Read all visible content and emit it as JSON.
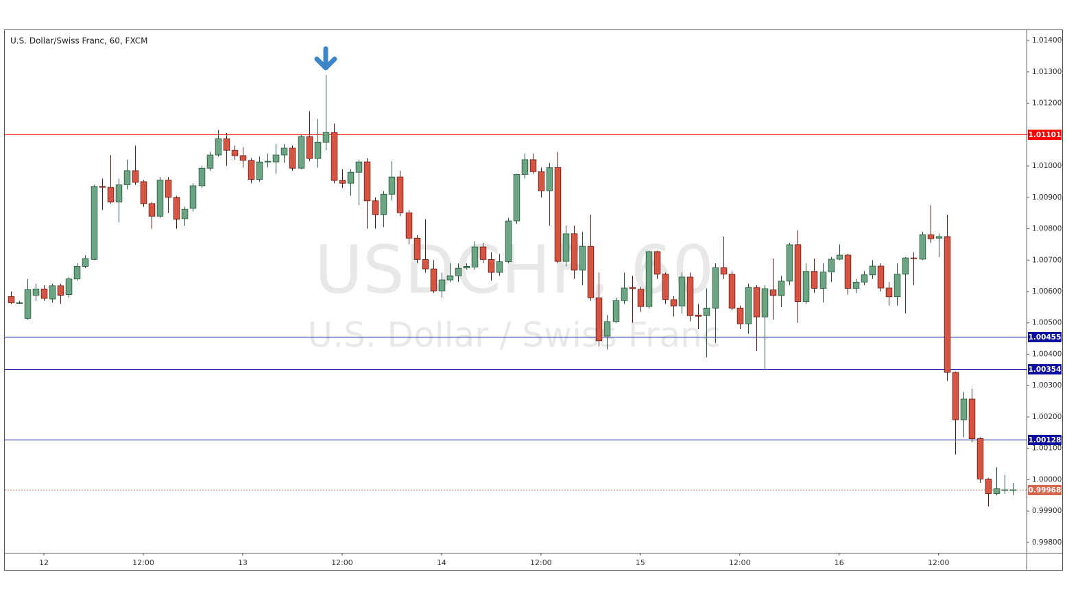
{
  "chart_data": {
    "type": "candlestick",
    "title": "U.S. Dollar/Swiss Franc, 60, FXCM",
    "watermark": [
      "USDCHF, 60",
      "U.S. Dollar / Swiss Franc"
    ],
    "x": [
      -4,
      -3,
      -2,
      -1,
      0,
      1,
      2,
      3,
      4,
      5,
      6,
      7,
      8,
      9,
      10,
      11,
      12,
      13,
      14,
      15,
      16,
      17,
      18,
      19,
      20,
      21,
      22,
      23,
      24,
      25,
      26,
      27,
      28,
      29,
      30,
      31,
      32,
      33,
      34,
      35,
      36,
      37,
      38,
      39,
      40,
      41,
      42,
      43,
      44,
      45,
      46,
      47,
      48,
      49,
      50,
      51,
      52,
      53,
      54,
      55,
      56,
      57,
      58,
      59,
      60,
      61,
      62,
      63,
      64,
      65,
      66,
      67,
      68,
      69,
      70,
      71,
      72,
      73,
      74,
      75,
      76,
      77,
      78,
      79,
      80,
      81,
      82,
      83,
      84,
      85,
      86,
      87,
      88,
      89,
      90,
      91,
      92,
      93,
      94,
      95,
      96,
      97,
      98,
      99,
      100,
      101,
      102,
      103,
      104,
      105,
      106,
      107,
      108,
      109,
      110,
      111,
      112,
      113,
      114,
      115,
      116,
      117
    ],
    "open": [
      1.00584,
      1.00564,
      1.00514,
      1.00588,
      1.00608,
      1.00576,
      1.00618,
      1.0059,
      1.0064,
      1.0068,
      1.00702,
      1.00935,
      1.00932,
      1.00885,
      1.0094,
      1.00985,
      1.0095,
      1.0088,
      1.0084,
      1.00955,
      1.009,
      1.00832,
      1.00865,
      1.00937,
      1.00993,
      1.01035,
      1.01087,
      1.0105,
      1.01033,
      1.01018,
      1.00957,
      1.01013,
      1.01013,
      1.01035,
      1.01057,
      1.00993,
      1.01094,
      1.01024,
      1.01076,
      1.01107,
      1.00954,
      1.00945,
      1.0098,
      1.01013,
      1.00889,
      1.00845,
      1.0091,
      1.00965,
      1.00851,
      1.0077,
      1.00702,
      1.00672,
      1.00602,
      1.00637,
      1.0065,
      1.00675,
      1.00678,
      1.00742,
      1.00702,
      1.00661,
      1.00695,
      1.00825,
      1.00973,
      1.0102,
      1.00982,
      1.00921,
      1.00995,
      1.00696,
      1.00784,
      1.00668,
      1.00744,
      1.0058,
      1.00458,
      1.00504,
      1.00571,
      1.00613,
      1.00607,
      1.00552,
      1.00727,
      1.00655,
      1.00574,
      1.00554,
      1.00646,
      1.00525,
      1.00523,
      1.00547,
      1.00676,
      1.00655,
      1.00547,
      1.00497,
      1.00613,
      1.00519,
      1.00605,
      1.00587,
      1.00633,
      1.00749,
      1.00568,
      1.00664,
      1.0061,
      1.00662,
      1.00703,
      1.00716,
      1.0061,
      1.0063,
      1.00653,
      1.00681,
      1.00611,
      1.00583,
      1.00655,
      1.00707,
      1.00703,
      1.00781,
      1.0077,
      1.00775,
      1.00342,
      1.00191,
      1.00257,
      1.00131,
      1.00002,
      0.99956,
      0.99968,
      0.99968
    ],
    "high": [
      1.006,
      1.0057,
      1.0064,
      1.00625,
      1.0062,
      1.00625,
      1.00625,
      1.00645,
      1.0069,
      1.00715,
      1.0094,
      1.0096,
      1.01035,
      1.0096,
      1.0102,
      1.01065,
      1.00955,
      1.00885,
      1.00965,
      1.00965,
      1.00905,
      1.0087,
      1.00945,
      1.01,
      1.01045,
      1.01115,
      1.01105,
      1.01065,
      1.0106,
      1.01025,
      1.0103,
      1.0104,
      1.0107,
      1.0107,
      1.01065,
      1.011,
      1.01175,
      1.0115,
      1.0129,
      1.01135,
      1.0099,
      1.0099,
      1.0102,
      1.01025,
      1.009,
      1.0092,
      1.01015,
      1.00985,
      1.0086,
      1.0078,
      1.0083,
      1.007,
      1.0066,
      1.0069,
      1.0069,
      1.0069,
      1.0076,
      1.00755,
      1.00725,
      1.0072,
      1.00835,
      1.00975,
      1.0104,
      1.0104,
      1.00995,
      1.0101,
      1.01045,
      1.0081,
      1.0081,
      1.0079,
      1.00845,
      1.0066,
      1.00525,
      1.0058,
      1.0066,
      1.0065,
      1.00615,
      1.0073,
      1.0073,
      1.0066,
      1.00585,
      1.0066,
      1.0066,
      1.0056,
      1.0061,
      1.0069,
      1.00775,
      1.00665,
      1.00555,
      1.00625,
      1.0062,
      1.0062,
      1.00705,
      1.0065,
      1.00755,
      1.00795,
      1.0069,
      1.00705,
      1.0069,
      1.0071,
      1.0075,
      1.0072,
      1.0064,
      1.00665,
      1.007,
      1.0069,
      1.0063,
      1.0069,
      1.0071,
      1.00725,
      1.0079,
      1.00875,
      1.00785,
      1.00845,
      1.00345,
      1.0028,
      1.0029,
      1.00135,
      1.00005,
      1.0004,
      1.00015,
      0.9999
    ],
    "low": [
      1.0056,
      1.0056,
      1.0051,
      1.0057,
      1.0057,
      1.00565,
      1.0056,
      1.0058,
      1.00635,
      1.00675,
      1.007,
      1.0086,
      1.0088,
      1.0082,
      1.00925,
      1.0094,
      1.0087,
      1.008,
      1.00835,
      1.0085,
      1.008,
      1.0081,
      1.00855,
      1.0093,
      1.00985,
      1.0103,
      1.01,
      1.0102,
      1.00995,
      1.00945,
      1.0095,
      1.00995,
      1.00975,
      1.0101,
      1.00985,
      1.0099,
      1.01015,
      1.00995,
      1.0105,
      1.00945,
      1.0093,
      1.00905,
      1.00875,
      1.008,
      1.008,
      1.00805,
      1.0089,
      1.0084,
      1.0075,
      1.0069,
      1.0066,
      1.00595,
      1.0058,
      1.0063,
      1.0063,
      1.0067,
      1.0067,
      1.0069,
      1.00635,
      1.0065,
      1.0069,
      1.00815,
      1.0096,
      1.00975,
      1.009,
      1.0081,
      1.0069,
      1.0068,
      1.0064,
      1.0062,
      1.0057,
      1.00425,
      1.00415,
      1.005,
      1.0056,
      1.005,
      1.00535,
      1.00545,
      1.0064,
      1.0056,
      1.0052,
      1.0053,
      1.00505,
      1.0048,
      1.0039,
      1.00435,
      1.0064,
      1.0054,
      1.0048,
      1.00465,
      1.0041,
      1.0035,
      1.0051,
      1.0055,
      1.0062,
      1.005,
      1.0056,
      1.00595,
      1.00565,
      1.0063,
      1.007,
      1.0059,
      1.00595,
      1.0062,
      1.0064,
      1.006,
      1.00555,
      1.00555,
      1.0053,
      1.0062,
      1.007,
      1.00755,
      1.0071,
      1.00315,
      1.0008,
      1.00135,
      1.0012,
      0.9999,
      0.99915,
      0.9995,
      0.99955,
      0.9995
    ],
    "close": [
      1.00564,
      1.00564,
      1.00606,
      1.00608,
      1.00578,
      1.00618,
      1.00588,
      1.0064,
      1.0068,
      1.00705,
      1.00935,
      1.00932,
      1.00885,
      1.0094,
      1.00985,
      1.00948,
      1.0088,
      1.0084,
      1.00955,
      1.009,
      1.0083,
      1.00862,
      1.00937,
      1.00993,
      1.01035,
      1.01087,
      1.0105,
      1.01033,
      1.01018,
      1.00957,
      1.01013,
      1.01015,
      1.01035,
      1.01057,
      1.00993,
      1.01094,
      1.01024,
      1.01076,
      1.01107,
      1.00954,
      1.00945,
      1.0098,
      1.01013,
      1.00889,
      1.00845,
      1.0091,
      1.00965,
      1.00851,
      1.0077,
      1.00702,
      1.00672,
      1.00602,
      1.00637,
      1.0065,
      1.00674,
      1.0068,
      1.00742,
      1.00702,
      1.00661,
      1.00695,
      1.00825,
      1.00973,
      1.0102,
      1.00982,
      1.00921,
      1.00995,
      1.00696,
      1.00784,
      1.00668,
      1.00744,
      1.0058,
      1.00443,
      1.00504,
      1.00571,
      1.00611,
      1.00609,
      1.00552,
      1.00727,
      1.00655,
      1.00574,
      1.00554,
      1.00646,
      1.00523,
      1.00521,
      1.00547,
      1.00676,
      1.00655,
      1.00547,
      1.00497,
      1.00613,
      1.00519,
      1.00609,
      1.00587,
      1.00633,
      1.00749,
      1.00568,
      1.00664,
      1.0061,
      1.00662,
      1.00703,
      1.00716,
      1.0061,
      1.0063,
      1.00653,
      1.00681,
      1.00611,
      1.00583,
      1.00655,
      1.00707,
      1.00705,
      1.00781,
      1.00768,
      1.00775,
      1.00342,
      1.00191,
      1.00257,
      1.00131,
      1.00002,
      0.99956,
      0.99971,
      0.99968,
      0.99968
    ],
    "up_color": "#6ba583",
    "up_border": "#225437",
    "down_color": "#d75442",
    "down_border": "#5b1a13",
    "xlim": [
      -4.72,
      118.62
    ],
    "xticks": [
      {
        "value": 0,
        "label": "12"
      },
      {
        "value": 12,
        "label": "12:00"
      },
      {
        "value": 24,
        "label": "13"
      },
      {
        "value": 36,
        "label": "12:00"
      },
      {
        "value": 48,
        "label": "14"
      },
      {
        "value": 60,
        "label": "12:00"
      },
      {
        "value": 72,
        "label": "15"
      },
      {
        "value": 84,
        "label": "12:00"
      },
      {
        "value": 96,
        "label": "16"
      },
      {
        "value": 108,
        "label": "12:00"
      }
    ],
    "ylim": [
      0.99767,
      1.01433
    ],
    "yticks": [
      {
        "value": 0.998,
        "label": "0.99800"
      },
      {
        "value": 0.999,
        "label": "0.99900"
      },
      {
        "value": 1.0,
        "label": "1.00000"
      },
      {
        "value": 1.001,
        "label": "1.00100"
      },
      {
        "value": 1.002,
        "label": "1.00200"
      },
      {
        "value": 1.003,
        "label": "1.00300"
      },
      {
        "value": 1.004,
        "label": "1.00400"
      },
      {
        "value": 1.005,
        "label": "1.00500"
      },
      {
        "value": 1.006,
        "label": "1.00600"
      },
      {
        "value": 1.007,
        "label": "1.00700"
      },
      {
        "value": 1.008,
        "label": "1.00800"
      },
      {
        "value": 1.009,
        "label": "1.00900"
      },
      {
        "value": 1.01,
        "label": "1.01000"
      },
      {
        "value": 1.011,
        "label": "1.01100"
      },
      {
        "value": 1.012,
        "label": "1.01200"
      },
      {
        "value": 1.013,
        "label": "1.01300"
      },
      {
        "value": 1.014,
        "label": "1.01400"
      }
    ],
    "grid": true,
    "levels": [
      {
        "value": 1.01101,
        "color": "#ff0000",
        "style": "solid"
      },
      {
        "value": 1.00455,
        "color": "#0b0b9e",
        "style": "solid"
      },
      {
        "value": 1.00354,
        "color": "#0b0b9e",
        "style": "solid"
      },
      {
        "value": 1.00128,
        "color": "#0b0b9e",
        "style": "solid"
      },
      {
        "value": 0.99968,
        "color": "#d9644c",
        "style": "dotted"
      }
    ]
  }
}
